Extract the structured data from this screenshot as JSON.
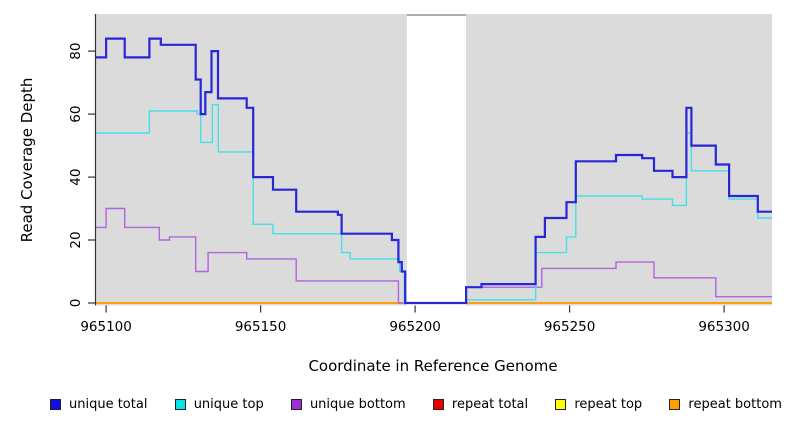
{
  "chart_data": {
    "type": "line",
    "step": true,
    "title": "",
    "xlabel": "Coordinate in Reference Genome",
    "ylabel": "Read Coverage Depth",
    "x_range": [
      965096.4,
      965315.5
    ],
    "y_range": [
      -0.8,
      91.8
    ],
    "x_ticks": [
      965100,
      965150,
      965200,
      965250,
      965300
    ],
    "y_ticks": [
      0,
      20,
      40,
      60,
      80
    ],
    "grid": false,
    "panel_background": "#DBDBDB",
    "masked_region": {
      "x_start": 965197.3,
      "x_end": 965216.5,
      "color": "#FFFFFF",
      "top_border_color": "#909090"
    },
    "legend_position": "bottom",
    "draw_order": [
      3,
      4,
      5,
      2,
      1,
      0
    ],
    "series": [
      {
        "name": "unique total",
        "color": "#2727D8",
        "swatch": "#0F0FE0",
        "line_width": 2.2,
        "points": [
          [
            965096.4,
            78
          ],
          [
            965100,
            84
          ],
          [
            965106,
            78
          ],
          [
            965114,
            84
          ],
          [
            965117.7,
            82
          ],
          [
            965129,
            71
          ],
          [
            965130.6,
            60
          ],
          [
            965132.1,
            67
          ],
          [
            965134.1,
            80
          ],
          [
            965136.2,
            65
          ],
          [
            965145.5,
            62
          ],
          [
            965147.6,
            40
          ],
          [
            965154,
            36
          ],
          [
            965161.5,
            29
          ],
          [
            965175,
            28
          ],
          [
            965176.2,
            22
          ],
          [
            965192.5,
            20
          ],
          [
            965194.6,
            13
          ],
          [
            965195.7,
            10
          ],
          [
            965196.8,
            0
          ],
          [
            965216.5,
            5
          ],
          [
            965221.5,
            6
          ],
          [
            965239,
            21
          ],
          [
            965242,
            27
          ],
          [
            965249,
            32
          ],
          [
            965252,
            45
          ],
          [
            965265,
            47
          ],
          [
            965273.5,
            46
          ],
          [
            965277.3,
            42
          ],
          [
            965283.3,
            40
          ],
          [
            965287.8,
            62
          ],
          [
            965289.4,
            50
          ],
          [
            965297.3,
            44
          ],
          [
            965301.6,
            34
          ],
          [
            965310.9,
            29
          ],
          [
            965315.5,
            29
          ]
        ]
      },
      {
        "name": "unique top",
        "color": "#45E0E8",
        "swatch": "#00E5E5",
        "line_width": 1.4,
        "points": [
          [
            965096.4,
            54
          ],
          [
            965114,
            61
          ],
          [
            965129.5,
            60
          ],
          [
            965130.6,
            51
          ],
          [
            965134.4,
            63
          ],
          [
            965136.3,
            48
          ],
          [
            965147.6,
            25
          ],
          [
            965154,
            22
          ],
          [
            965176.2,
            16
          ],
          [
            965179,
            14
          ],
          [
            965195,
            10
          ],
          [
            965196.5,
            0
          ],
          [
            965216.5,
            1
          ],
          [
            965239,
            16
          ],
          [
            965249,
            21
          ],
          [
            965252,
            34
          ],
          [
            965273.5,
            33
          ],
          [
            965283.3,
            31
          ],
          [
            965287.8,
            54
          ],
          [
            965289.4,
            42
          ],
          [
            965301.6,
            33
          ],
          [
            965310.9,
            27
          ],
          [
            965315.5,
            27
          ]
        ]
      },
      {
        "name": "unique bottom",
        "color": "#B164DC",
        "swatch": "#9B30D8",
        "line_width": 1.4,
        "points": [
          [
            965096.4,
            24
          ],
          [
            965100,
            30
          ],
          [
            965106,
            24
          ],
          [
            965117.2,
            20
          ],
          [
            965120.5,
            21
          ],
          [
            965129,
            10
          ],
          [
            965133,
            16
          ],
          [
            965145.5,
            14
          ],
          [
            965161.5,
            7
          ],
          [
            965194.6,
            0
          ],
          [
            965216.5,
            5
          ],
          [
            965241,
            11
          ],
          [
            965265,
            13
          ],
          [
            965277.3,
            8
          ],
          [
            965297.3,
            2
          ],
          [
            965315.5,
            2
          ]
        ]
      },
      {
        "name": "repeat total",
        "color": "#E80000",
        "swatch": "#E80000",
        "line_width": 1.4,
        "points": [
          [
            965096.4,
            0
          ],
          [
            965315.5,
            0
          ]
        ]
      },
      {
        "name": "repeat top",
        "color": "#FFFF00",
        "swatch": "#FFFF00",
        "line_width": 1.4,
        "points": [
          [
            965096.4,
            0
          ],
          [
            965315.5,
            0
          ]
        ]
      },
      {
        "name": "repeat bottom",
        "color": "#FF9D0A",
        "swatch": "#FFA000",
        "line_width": 1.8,
        "points": [
          [
            965096.4,
            0
          ],
          [
            965315.5,
            0
          ]
        ]
      }
    ]
  }
}
